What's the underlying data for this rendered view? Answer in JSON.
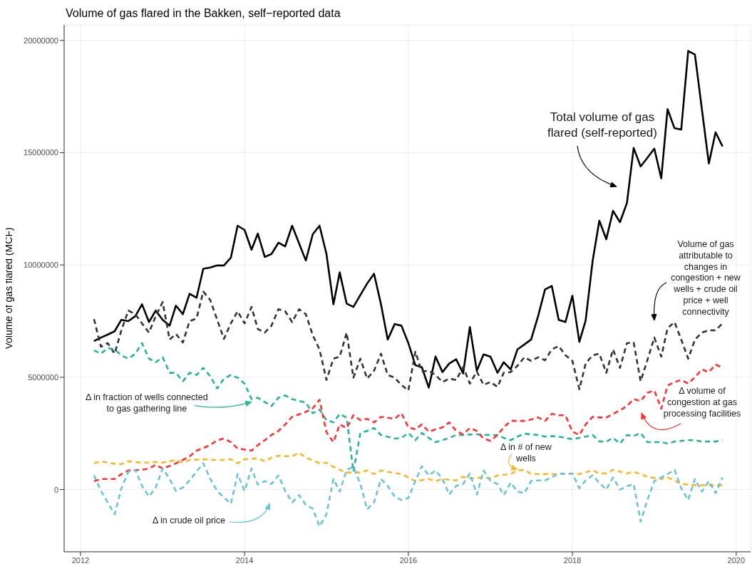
{
  "chart_data": {
    "type": "line",
    "title": "Volume of gas flared in the Bakken, self−reported data",
    "ylabel": "Volume of gas flared (MCF)",
    "x": [
      "2012-03",
      "2012-04",
      "2012-05",
      "2012-06",
      "2012-07",
      "2012-08",
      "2012-09",
      "2012-10",
      "2012-11",
      "2012-12",
      "2013-01",
      "2013-02",
      "2013-03",
      "2013-04",
      "2013-05",
      "2013-06",
      "2013-07",
      "2013-08",
      "2013-09",
      "2013-10",
      "2013-11",
      "2013-12",
      "2014-01",
      "2014-02",
      "2014-03",
      "2014-04",
      "2014-05",
      "2014-06",
      "2014-07",
      "2014-08",
      "2014-09",
      "2014-10",
      "2014-11",
      "2014-12",
      "2015-01",
      "2015-02",
      "2015-03",
      "2015-04",
      "2015-05",
      "2015-06",
      "2015-07",
      "2015-08",
      "2015-09",
      "2015-10",
      "2015-11",
      "2015-12",
      "2016-01",
      "2016-02",
      "2016-03",
      "2016-04",
      "2016-05",
      "2016-06",
      "2016-07",
      "2016-08",
      "2016-09",
      "2016-10",
      "2016-11",
      "2016-12",
      "2017-01",
      "2017-02",
      "2017-03",
      "2017-04",
      "2017-05",
      "2017-06",
      "2017-07",
      "2017-08",
      "2017-09",
      "2017-10",
      "2017-11",
      "2017-12",
      "2018-01",
      "2018-02",
      "2018-03",
      "2018-04",
      "2018-05",
      "2018-06",
      "2018-07",
      "2018-08",
      "2018-09",
      "2018-10",
      "2018-11",
      "2018-12",
      "2019-01",
      "2019-02",
      "2019-03",
      "2019-04",
      "2019-05",
      "2019-06",
      "2019-07",
      "2019-08",
      "2019-09",
      "2019-10",
      "2019-11"
    ],
    "series": [
      {
        "color": "#000000",
        "line_style": "solid",
        "values": [
          6610000,
          6770000,
          6900000,
          7050000,
          7560000,
          7500000,
          7720000,
          8250000,
          7460000,
          7970000,
          7560000,
          7300000,
          8190000,
          7810000,
          8720000,
          8540000,
          9830000,
          9890000,
          9980000,
          9980000,
          10330000,
          11750000,
          11560000,
          10680000,
          11400000,
          10360000,
          10490000,
          10990000,
          10830000,
          11750000,
          10960000,
          10200000,
          11370000,
          11750000,
          10490000,
          8250000,
          9670000,
          8280000,
          8130000,
          8660000,
          9170000,
          9610000,
          8250000,
          6680000,
          7370000,
          7300000,
          6520000,
          5540000,
          5450000,
          4540000,
          5920000,
          5230000,
          5610000,
          5800000,
          5170000,
          7240000,
          5290000,
          6020000,
          5920000,
          5200000,
          5670000,
          5350000,
          6240000,
          6460000,
          6680000,
          7720000,
          8910000,
          9070000,
          7560000,
          7460000,
          8630000,
          6580000,
          7530000,
          10170000,
          11970000,
          11150000,
          12410000,
          11910000,
          12760000,
          15210000,
          14390000,
          14770000,
          15180000,
          13860000,
          16940000,
          16090000,
          16030000,
          19530000,
          19370000,
          16940000,
          14520000,
          15910000,
          15280000
        ]
      },
      {
        "color": "#333333",
        "values": [
          7590000,
          6360000,
          6520000,
          6050000,
          7090000,
          7970000,
          7810000,
          7400000,
          6990000,
          7720000,
          8350000,
          6680000,
          6930000,
          6550000,
          7500000,
          7620000,
          8820000,
          8440000,
          7560000,
          6710000,
          7400000,
          7940000,
          7400000,
          8130000,
          7150000,
          6990000,
          7300000,
          8030000,
          7940000,
          7460000,
          8030000,
          7810000,
          6870000,
          6240000,
          4880000,
          5830000,
          5920000,
          6990000,
          4980000,
          5830000,
          4940000,
          5290000,
          6050000,
          5100000,
          4980000,
          4660000,
          4410000,
          6140000,
          5260000,
          5290000,
          5100000,
          4790000,
          4940000,
          4880000,
          5450000,
          4720000,
          5260000,
          4660000,
          4790000,
          4570000,
          5200000,
          5230000,
          5510000,
          5890000,
          5730000,
          5890000,
          5760000,
          6240000,
          6390000,
          5980000,
          5730000,
          4470000,
          5610000,
          5980000,
          6050000,
          5200000,
          6240000,
          5420000,
          6520000,
          6550000,
          4820000,
          5760000,
          6770000,
          5920000,
          7180000,
          7460000,
          6680000,
          5830000,
          6680000,
          6990000,
          7090000,
          7090000,
          7400000
        ]
      },
      {
        "color": "#2bb39a",
        "values": [
          6200000,
          6050000,
          6300000,
          6240000,
          5980000,
          5830000,
          6050000,
          6520000,
          5830000,
          5670000,
          5890000,
          5200000,
          5200000,
          4820000,
          5200000,
          5100000,
          5420000,
          5040000,
          4500000,
          4940000,
          5100000,
          4980000,
          4720000,
          4030000,
          4090000,
          3900000,
          3720000,
          4090000,
          4190000,
          4030000,
          3950000,
          3870000,
          3400000,
          3560000,
          3090000,
          2990000,
          3370000,
          3200000,
          800000,
          2520000,
          2610000,
          2740000,
          2430000,
          2350000,
          2270000,
          2300000,
          2520000,
          2200000,
          2520000,
          2300000,
          2110000,
          2200000,
          2300000,
          2430000,
          2430000,
          2450000,
          2460000,
          2440000,
          2430000,
          2430000,
          2300000,
          2200000,
          2360000,
          2490000,
          2460000,
          2430000,
          2360000,
          2380000,
          2360000,
          2300000,
          2240000,
          2300000,
          2360000,
          2430000,
          2140000,
          2140000,
          2300000,
          2050000,
          2430000,
          2390000,
          2520000,
          2110000,
          2110000,
          2110000,
          2050000,
          2140000,
          2170000,
          2200000,
          2200000,
          2140000,
          2140000,
          2140000,
          2200000
        ]
      },
      {
        "color": "#ff3333",
        "values": [
          380000,
          470000,
          470000,
          470000,
          690000,
          850000,
          870000,
          880000,
          940000,
          1100000,
          940000,
          1050000,
          1170000,
          1320000,
          1480000,
          1730000,
          1850000,
          1980000,
          2200000,
          2270000,
          2110000,
          1830000,
          1780000,
          1730000,
          1980000,
          2200000,
          2430000,
          2610000,
          2900000,
          3240000,
          3350000,
          3460000,
          3620000,
          4000000,
          2550000,
          2110000,
          2900000,
          2740000,
          3310000,
          3090000,
          3150000,
          2990000,
          3240000,
          3200000,
          3150000,
          3400000,
          2770000,
          2680000,
          2900000,
          2580000,
          2680000,
          2770000,
          2990000,
          2610000,
          2460000,
          2740000,
          2610000,
          2270000,
          2170000,
          2430000,
          2770000,
          3060000,
          3060000,
          3060000,
          3120000,
          3210000,
          3060000,
          3370000,
          3310000,
          3310000,
          2580000,
          2430000,
          2900000,
          3240000,
          3210000,
          3210000,
          3370000,
          3530000,
          3720000,
          4030000,
          3940000,
          4310000,
          4410000,
          3600000,
          4630000,
          4790000,
          4880000,
          4720000,
          5000000,
          5350000,
          5230000,
          5570000,
          5420000
        ]
      },
      {
        "color": "#f5b82e",
        "values": [
          1170000,
          1260000,
          1200000,
          1150000,
          1130000,
          1260000,
          1220000,
          1200000,
          1210000,
          1230000,
          1200000,
          1260000,
          1320000,
          1200000,
          1320000,
          1330000,
          1350000,
          1330000,
          1320000,
          1320000,
          1350000,
          1170000,
          1350000,
          1370000,
          1390000,
          1260000,
          1420000,
          1510000,
          1490000,
          1480000,
          1640000,
          1420000,
          1300000,
          1170000,
          1200000,
          1010000,
          880000,
          760000,
          760000,
          760000,
          850000,
          690000,
          850000,
          790000,
          740000,
          690000,
          540000,
          380000,
          420000,
          470000,
          380000,
          470000,
          440000,
          410000,
          570000,
          500000,
          520000,
          540000,
          500000,
          630000,
          660000,
          690000,
          850000,
          880000,
          690000,
          690000,
          690000,
          690000,
          690000,
          720000,
          700000,
          690000,
          770000,
          850000,
          720000,
          720000,
          880000,
          800000,
          720000,
          790000,
          690000,
          570000,
          520000,
          470000,
          540000,
          410000,
          250000,
          220000,
          190000,
          190000,
          190000,
          190000,
          190000
        ]
      },
      {
        "color": "#6cc3d9",
        "values": [
          630000,
          -60000,
          -570000,
          -1100000,
          60000,
          790000,
          880000,
          160000,
          -310000,
          90000,
          940000,
          470000,
          -60000,
          90000,
          410000,
          800000,
          1170000,
          470000,
          -60000,
          -350000,
          -630000,
          690000,
          -60000,
          940000,
          220000,
          380000,
          250000,
          630000,
          -60000,
          -570000,
          -250000,
          -690000,
          -850000,
          -1640000,
          -1100000,
          470000,
          -90000,
          880000,
          1010000,
          250000,
          -880000,
          -570000,
          470000,
          160000,
          -310000,
          -470000,
          -380000,
          380000,
          1040000,
          630000,
          850000,
          470000,
          -220000,
          160000,
          250000,
          720000,
          -220000,
          850000,
          380000,
          250000,
          -250000,
          310000,
          -90000,
          -160000,
          380000,
          410000,
          410000,
          550000,
          720000,
          690000,
          720000,
          60000,
          410000,
          630000,
          300000,
          0,
          540000,
          0,
          150000,
          250000,
          -1420000,
          -470000,
          380000,
          540000,
          690000,
          880000,
          60000,
          -470000,
          470000,
          -90000,
          380000,
          -160000,
          540000
        ]
      }
    ],
    "line_style": "dashed",
    "xlim": [
      "2011-10-20",
      "2020-03-05"
    ],
    "xticks": [
      "2012",
      "2014",
      "2016",
      "2018",
      "2020"
    ],
    "ylim": [
      -2770000,
      20690000
    ],
    "yticks": [
      0,
      5000000,
      10000000,
      15000000,
      20000000
    ],
    "grid": true,
    "annotations": [
      "Total volume of gas flared (self-reported)",
      "Volume of gas attributable to changes in congestion + new wells + crude oil price + well connectivity",
      "Δ volume of congestion at gas processing facilities",
      {
        "text": "Δ in # of new wells",
        "x": "2017-05",
        "y": 900000
      },
      {
        "text": "Δ in fraction of wells connected to gas gathering line",
        "x": "2014-02",
        "y": 3900000
      },
      "Δ in crude oil price"
    ]
  }
}
